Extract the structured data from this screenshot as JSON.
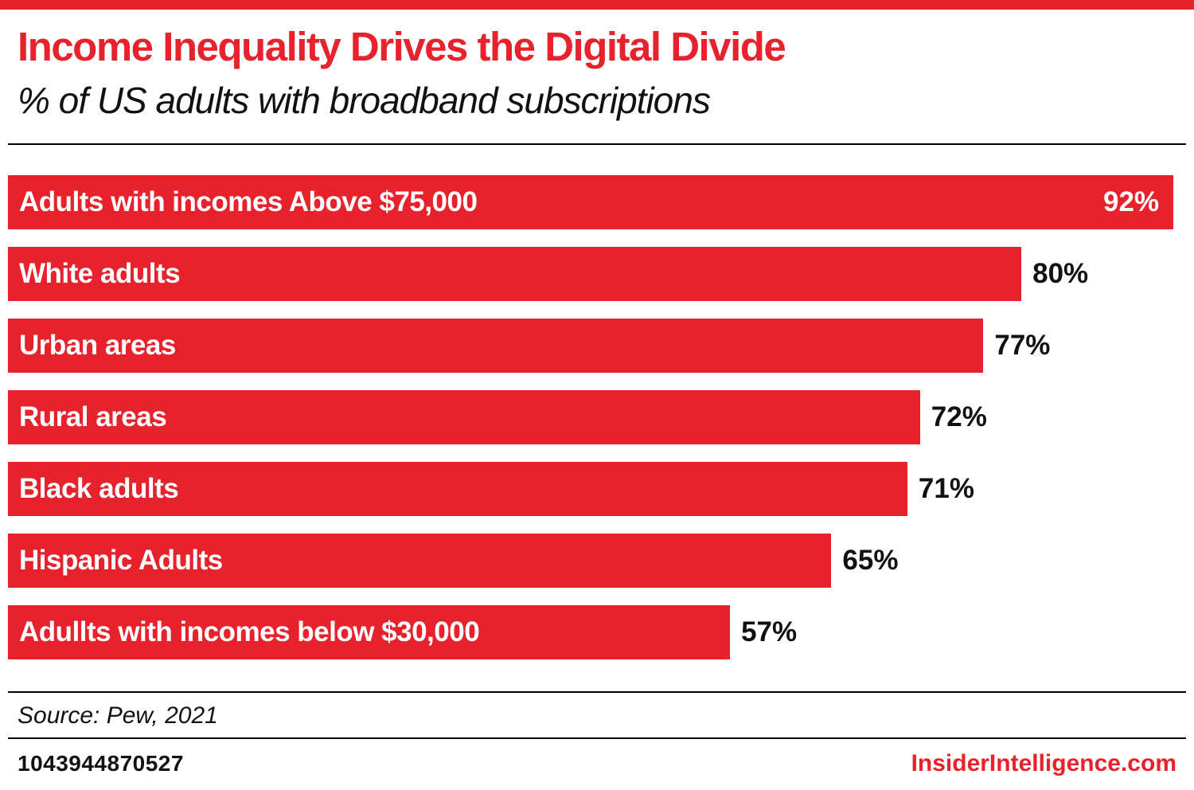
{
  "header": {
    "title": "Income Inequality Drives the Digital Divide",
    "subtitle": "% of US adults with broadband subscriptions"
  },
  "chart_data": {
    "type": "bar",
    "orientation": "horizontal",
    "title": "Income Inequality Drives the Digital Divide",
    "subtitle": "% of US adults with broadband subscriptions",
    "categories": [
      "Adults with incomes Above $75,000",
      "White adults",
      "Urban areas",
      "Rural areas",
      "Black adults",
      "Hispanic Adults",
      "Adullts with incomes below $30,000"
    ],
    "values": [
      92,
      80,
      77,
      72,
      71,
      65,
      57
    ],
    "value_suffix": "%",
    "xlim": [
      0,
      93
    ],
    "grid": false,
    "legend": false,
    "value_label_inside": [
      true,
      false,
      false,
      false,
      false,
      false,
      false
    ],
    "bar_color": "#e8222c"
  },
  "footer": {
    "source": "Source: Pew, 2021",
    "id": "1043944870527",
    "site": "InsiderIntelligence.com"
  },
  "colors": {
    "accent": "#e8222c",
    "text": "#111111",
    "bar_label": "#ffffff"
  }
}
